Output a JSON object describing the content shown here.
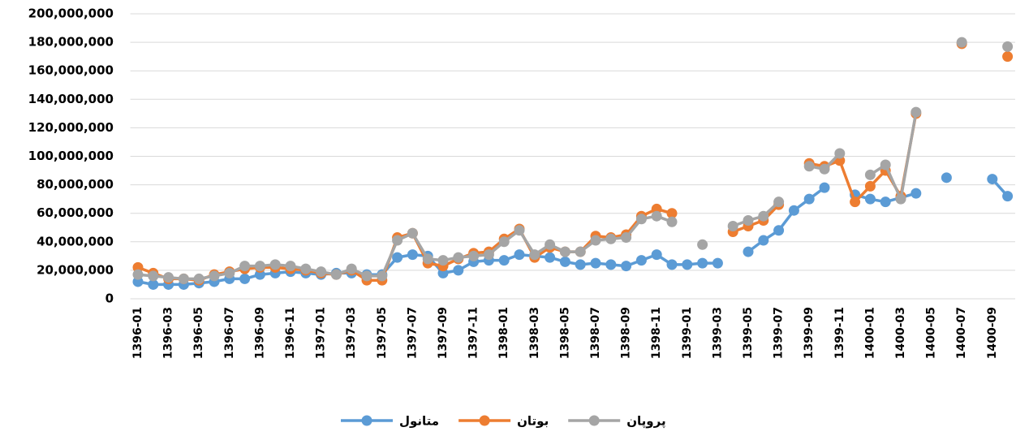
{
  "chart_data": {
    "type": "line",
    "categories": [
      "1396-01",
      null,
      "1396-03",
      null,
      "1396-05",
      null,
      "1396-07",
      null,
      "1396-09",
      null,
      "1396-11",
      null,
      "1397-01",
      null,
      "1397-03",
      null,
      "1397-05",
      null,
      "1397-07",
      null,
      "1397-09",
      null,
      "1397-11",
      null,
      "1398-01",
      null,
      "1398-03",
      null,
      "1398-05",
      null,
      "1398-07",
      null,
      "1398-09",
      null,
      "1398-11",
      null,
      "1399-01",
      null,
      "1399-03",
      null,
      "1399-05",
      null,
      "1399-07",
      null,
      "1399-09",
      null,
      "1399-11",
      null,
      "1400-01",
      null,
      "1400-03",
      null,
      "1400-05",
      null,
      "1400-07",
      null,
      "1400-09",
      null
    ],
    "series": [
      {
        "name": "متانول",
        "color": "#5b9bd5",
        "values": [
          12000000,
          10000000,
          10000000,
          10000000,
          11000000,
          12000000,
          14000000,
          14000000,
          17000000,
          18000000,
          19000000,
          18000000,
          17000000,
          18000000,
          18000000,
          17000000,
          17000000,
          29000000,
          31000000,
          30000000,
          18000000,
          20000000,
          26000000,
          27000000,
          27000000,
          31000000,
          30000000,
          29000000,
          26000000,
          24000000,
          25000000,
          24000000,
          23000000,
          27000000,
          31000000,
          24000000,
          24000000,
          25000000,
          25000000,
          null,
          33000000,
          41000000,
          48000000,
          62000000,
          70000000,
          78000000,
          null,
          73000000,
          70000000,
          68000000,
          71000000,
          74000000,
          null,
          85000000,
          null,
          null,
          84000000,
          72000000
        ]
      },
      {
        "name": "بوتان",
        "color": "#ed7d31",
        "values": [
          22000000,
          18000000,
          14000000,
          14000000,
          13000000,
          17000000,
          19000000,
          21000000,
          22000000,
          22000000,
          21000000,
          20000000,
          18000000,
          17000000,
          20000000,
          13000000,
          13000000,
          43000000,
          46000000,
          25000000,
          23000000,
          28000000,
          32000000,
          33000000,
          42000000,
          49000000,
          29000000,
          36000000,
          33000000,
          33000000,
          44000000,
          43000000,
          45000000,
          58000000,
          63000000,
          60000000,
          null,
          null,
          null,
          47000000,
          51000000,
          55000000,
          66000000,
          null,
          95000000,
          93000000,
          97000000,
          68000000,
          79000000,
          90000000,
          72000000,
          130000000,
          null,
          null,
          179000000,
          null,
          null,
          170000000
        ]
      },
      {
        "name": "پروپان",
        "color": "#a5a5a5",
        "values": [
          17000000,
          16000000,
          15000000,
          14000000,
          14000000,
          16000000,
          18000000,
          23000000,
          23000000,
          24000000,
          23000000,
          21000000,
          19000000,
          17000000,
          21000000,
          16000000,
          16000000,
          41000000,
          46000000,
          28000000,
          27000000,
          29000000,
          30000000,
          31000000,
          40000000,
          48000000,
          31000000,
          38000000,
          33000000,
          33000000,
          41000000,
          42000000,
          43000000,
          56000000,
          58000000,
          54000000,
          null,
          38000000,
          null,
          51000000,
          55000000,
          58000000,
          68000000,
          null,
          93000000,
          91000000,
          102000000,
          null,
          87000000,
          94000000,
          70000000,
          131000000,
          null,
          null,
          180000000,
          null,
          null,
          177000000
        ]
      }
    ],
    "ylim": [
      0,
      200000000
    ],
    "yticks": [
      {
        "value": 0,
        "label": "0"
      },
      {
        "value": 20000000,
        "label": "20,000,000"
      },
      {
        "value": 40000000,
        "label": "40,000,000"
      },
      {
        "value": 60000000,
        "label": "60,000,000"
      },
      {
        "value": 80000000,
        "label": "80,000,000"
      },
      {
        "value": 100000000,
        "label": "100,000,000"
      },
      {
        "value": 120000000,
        "label": "120,000,000"
      },
      {
        "value": 140000000,
        "label": "140,000,000"
      },
      {
        "value": 160000000,
        "label": "160,000,000"
      },
      {
        "value": 180000000,
        "label": "180,000,000"
      },
      {
        "value": 200000000,
        "label": "200,000,000"
      }
    ],
    "grid": true,
    "legend": "bottom"
  }
}
